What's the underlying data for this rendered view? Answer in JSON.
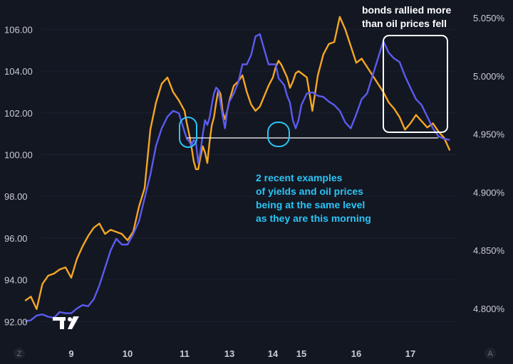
{
  "chart_data": {
    "type": "line",
    "title": "",
    "xlabel": "",
    "ylabel_left": "",
    "ylabel_right": "",
    "x_ticks": [
      "9",
      "10",
      "11",
      "13",
      "14",
      "15",
      "16",
      "17"
    ],
    "left_axis": {
      "ticks": [
        "106.00",
        "104.00",
        "102.00",
        "100.00",
        "98.00",
        "96.00",
        "94.00",
        "92.00"
      ],
      "range": [
        91.4,
        107.0
      ]
    },
    "right_axis": {
      "ticks": [
        "5.050%",
        "5.000%",
        "4.950%",
        "4.900%",
        "4.850%",
        "4.800%"
      ],
      "range": [
        4.778,
        5.058
      ]
    },
    "series": [
      {
        "axis": "left",
        "color": "#f5a623",
        "x": [
          8.2,
          8.3,
          8.4,
          8.5,
          8.6,
          8.7,
          8.8,
          8.9,
          9.0,
          9.1,
          9.2,
          9.3,
          9.4,
          9.5,
          9.6,
          9.7,
          9.8,
          9.9,
          10.0,
          10.1,
          10.2,
          10.3,
          10.4,
          10.5,
          10.6,
          10.7,
          10.8,
          10.9,
          11.0,
          11.1,
          11.2,
          11.3,
          11.4,
          11.5,
          11.6,
          11.7,
          11.8,
          11.9,
          12.0,
          12.1,
          12.2,
          12.3,
          12.4,
          12.5,
          12.6,
          12.7,
          12.8,
          12.9,
          13.0,
          13.1,
          13.2,
          13.3,
          13.4,
          13.5,
          13.6,
          13.7,
          13.8,
          13.9,
          14.0,
          14.1,
          14.2,
          14.3,
          14.4,
          14.5,
          14.6,
          14.7,
          14.8,
          14.9,
          15.0,
          15.1,
          15.2,
          15.3,
          15.4,
          15.5,
          15.6,
          15.7,
          15.8,
          15.9,
          16.0,
          16.1,
          16.2,
          16.3,
          16.4,
          16.5,
          16.6,
          16.7,
          16.8,
          16.9,
          17.0,
          17.1,
          17.2,
          17.3,
          17.4,
          17.5,
          17.6,
          17.7
        ],
        "values": [
          93.0,
          93.2,
          92.6,
          93.8,
          94.2,
          94.3,
          94.5,
          94.6,
          94.1,
          95.0,
          95.6,
          96.1,
          96.5,
          96.7,
          96.2,
          96.4,
          96.3,
          96.2,
          95.9,
          96.3,
          97.5,
          98.4,
          101.2,
          102.5,
          103.4,
          103.7,
          103.0,
          102.6,
          102.1,
          101.5,
          101.0,
          100.4,
          99.7,
          99.3,
          99.3,
          99.9,
          100.4,
          100.1,
          99.6,
          100.6,
          101.4,
          101.8,
          102.5,
          103.1,
          102.9,
          102.0,
          101.7,
          102.1,
          102.6,
          103.3,
          103.5,
          103.8,
          103.0,
          102.4,
          102.1,
          102.3,
          102.8,
          103.3,
          103.7,
          104.2,
          104.5,
          104.3,
          104.0,
          103.7,
          103.2,
          103.5,
          103.9,
          104.0,
          103.9,
          103.7,
          102.1,
          103.8,
          104.8,
          105.3,
          105.4,
          106.6,
          106.0,
          105.2,
          104.4,
          104.6,
          104.2,
          103.8,
          103.4,
          103.0,
          102.5,
          102.2,
          101.8,
          101.2,
          101.5,
          101.9,
          101.6,
          101.3,
          101.5,
          101.1,
          100.8,
          100.2
        ]
      },
      {
        "axis": "right",
        "color": "#5b5bf0",
        "x": [
          8.2,
          8.3,
          8.4,
          8.5,
          8.6,
          8.7,
          8.8,
          8.9,
          9.0,
          9.1,
          9.2,
          9.3,
          9.4,
          9.5,
          9.6,
          9.7,
          9.8,
          9.9,
          10.0,
          10.1,
          10.2,
          10.3,
          10.4,
          10.5,
          10.6,
          10.7,
          10.8,
          10.9,
          11.0,
          11.1,
          11.2,
          11.3,
          11.4,
          11.5,
          11.6,
          11.7,
          11.8,
          11.9,
          12.0,
          12.1,
          12.2,
          12.3,
          12.4,
          12.5,
          12.6,
          12.7,
          12.8,
          12.9,
          13.0,
          13.1,
          13.2,
          13.3,
          13.4,
          13.5,
          13.6,
          13.7,
          13.8,
          13.9,
          14.0,
          14.1,
          14.2,
          14.3,
          14.4,
          14.5,
          14.6,
          14.7,
          14.8,
          14.9,
          15.0,
          15.1,
          15.2,
          15.3,
          15.4,
          15.5,
          15.6,
          15.7,
          15.8,
          15.9,
          16.0,
          16.1,
          16.2,
          16.3,
          16.4,
          16.5,
          16.6,
          16.7,
          16.8,
          16.9,
          17.0,
          17.1,
          17.2,
          17.3,
          17.4,
          17.5,
          17.6,
          17.7
        ],
        "values": [
          4.789,
          4.79,
          4.794,
          4.795,
          4.793,
          4.792,
          4.797,
          4.796,
          4.796,
          4.8,
          4.803,
          4.802,
          4.808,
          4.82,
          4.835,
          4.85,
          4.86,
          4.855,
          4.855,
          4.864,
          4.875,
          4.895,
          4.915,
          4.94,
          4.955,
          4.965,
          4.97,
          4.968,
          4.952,
          4.946,
          4.944,
          4.94,
          4.945,
          4.943,
          4.925,
          4.935,
          4.95,
          4.962,
          4.958,
          4.964,
          4.975,
          4.985,
          4.99,
          4.988,
          4.976,
          4.965,
          4.955,
          4.97,
          4.978,
          4.985,
          4.994,
          5.01,
          5.01,
          5.018,
          5.034,
          5.036,
          5.023,
          5.01,
          5.01,
          5.01,
          4.998,
          4.995,
          4.992,
          4.983,
          4.977,
          4.962,
          4.955,
          4.962,
          4.975,
          4.985,
          4.986,
          4.983,
          4.982,
          4.978,
          4.975,
          4.97,
          4.96,
          4.955,
          4.967,
          4.98,
          4.985,
          5.0,
          5.015,
          5.03,
          5.02,
          5.015,
          5.012,
          5.0,
          4.99,
          4.98,
          4.975,
          4.965,
          4.955,
          4.948,
          4.946,
          4.945
        ]
      }
    ],
    "reference_line": {
      "y_left": 100.8
    },
    "annotations": [
      {
        "id": "top-right",
        "lines": [
          "bonds rallied more",
          "than oil prices fell"
        ]
      },
      {
        "id": "middle",
        "lines": [
          "2 recent examples",
          "of yields and oil prices",
          "being at the same level",
          "as they are this morning"
        ]
      }
    ],
    "corner_labels": {
      "left": "Z",
      "right": "A"
    },
    "colors": {
      "background": "#131722",
      "oil": "#f5a623",
      "yield": "#5b5bf0",
      "highlight": "#29c5f6",
      "box": "#ffffff"
    }
  }
}
